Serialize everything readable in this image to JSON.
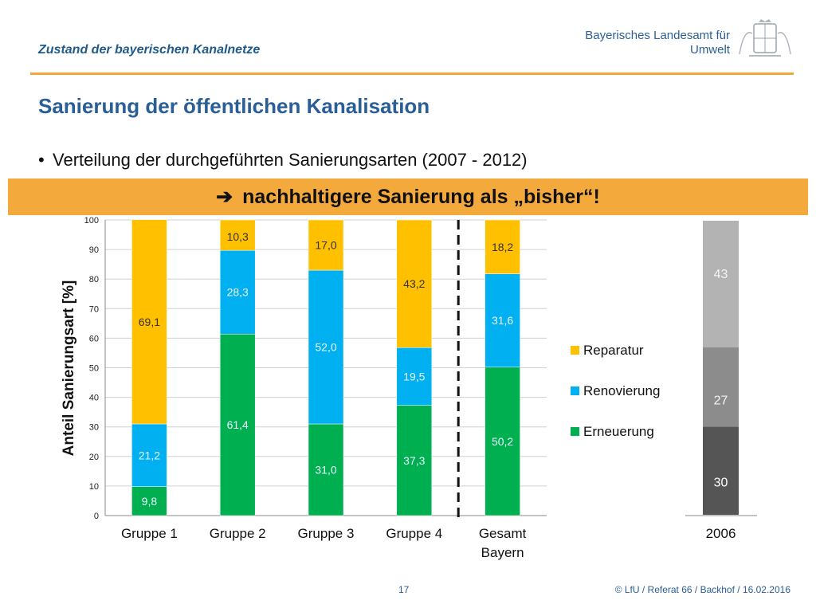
{
  "header": {
    "title": "Zustand der bayerischen Kanalnetze",
    "org_line1": "Bayerisches Landesamt für",
    "org_line2": "Umwelt"
  },
  "slide": {
    "title": "Sanierung der öffentlichen Kanalisation",
    "bullet": "Verteilung der durchgeführten Sanierungsarten (2007 - 2012)",
    "banner_arrow": "➔",
    "banner_text": "nachhaltigere Sanierung als „bisher“!"
  },
  "footer": {
    "page": "17",
    "copyright": "© LfU / Referat 66 / Backhof / 16.02.2016"
  },
  "colors": {
    "reparatur": "#ffc000",
    "renovierung": "#00b0f0",
    "erneuerung": "#00b050",
    "accent": "#f4a93c",
    "title_blue": "#2a5e96"
  },
  "chart_data": [
    {
      "type": "bar",
      "stacked": true,
      "categories": [
        "Gruppe 1",
        "Gruppe 2",
        "Gruppe 3",
        "Gruppe 4",
        "Gesamt Bayern"
      ],
      "series": [
        {
          "name": "Erneuerung",
          "values": [
            9.8,
            61.4,
            31.0,
            37.3,
            50.2
          ],
          "labels": [
            "9,8",
            "61,4",
            "31,0",
            "37,3",
            "50,2"
          ],
          "color": "#00b050"
        },
        {
          "name": "Renovierung",
          "values": [
            21.2,
            28.3,
            52.0,
            19.5,
            31.6
          ],
          "labels": [
            "21,2",
            "28,3",
            "52,0",
            "19,5",
            "31,6"
          ],
          "color": "#00b0f0"
        },
        {
          "name": "Reparatur",
          "values": [
            69.1,
            10.3,
            17.0,
            43.2,
            18.2
          ],
          "labels": [
            "69,1",
            "10,3",
            "17,0",
            "43,2",
            "18,2"
          ],
          "color": "#ffc000"
        }
      ],
      "ylabel": "Anteil Sanierungsart [%]",
      "ylim": [
        0,
        100
      ],
      "yticks": [
        "0",
        "10",
        "20",
        "30",
        "40",
        "50",
        "60",
        "70",
        "80",
        "90",
        "100"
      ],
      "grid": true,
      "legend": [
        "Reparatur",
        "Renovierung",
        "Erneuerung"
      ],
      "legend_position": "right",
      "separator": "dashed line between Gruppe 4 and Gesamt Bayern"
    },
    {
      "type": "bar",
      "stacked": true,
      "categories": [
        "2006"
      ],
      "series": [
        {
          "values": [
            30
          ],
          "labels": [
            "30"
          ],
          "color": "#555555"
        },
        {
          "values": [
            27
          ],
          "labels": [
            "27"
          ],
          "color": "#8c8c8c"
        },
        {
          "values": [
            43
          ],
          "labels": [
            "43"
          ],
          "color": "#b3b3b3"
        }
      ],
      "ylim": [
        0,
        100
      ]
    }
  ]
}
